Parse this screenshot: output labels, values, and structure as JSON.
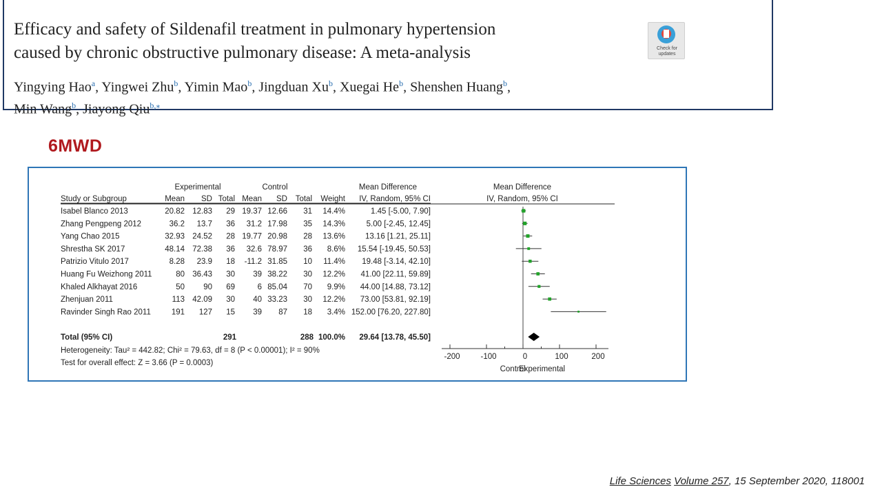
{
  "paper": {
    "title_line1": "Efficacy and safety of Sildenafil treatment in pulmonary hypertension",
    "title_line2": "caused by chronic obstructive pulmonary disease: A meta-analysis",
    "authors": [
      {
        "name": "Yingying Hao",
        "sup": "a"
      },
      {
        "name": "Yingwei Zhu",
        "sup": "b"
      },
      {
        "name": "Yimin Mao",
        "sup": "b"
      },
      {
        "name": "Jingduan Xu",
        "sup": "b"
      },
      {
        "name": "Xuegai He",
        "sup": "b"
      },
      {
        "name": "Shenshen Huang",
        "sup": "b"
      },
      {
        "name": "Min Wang",
        "sup": "b"
      },
      {
        "name": "Jiayong Qiu",
        "sup": "b,⁎"
      }
    ],
    "badge_text_1": "Check for",
    "badge_text_2": "updates"
  },
  "section_label": "6MWD",
  "citation": {
    "journal": "Life Sciences",
    "volume": "Volume 257",
    "rest": ", 15 September 2020, 118001"
  },
  "chart_data": {
    "type": "forest",
    "group_headers": {
      "experimental": "Experimental",
      "control": "Control",
      "md": "Mean Difference",
      "md_plot": "Mean Difference"
    },
    "columns": [
      "Study or Subgroup",
      "Mean",
      "SD",
      "Total",
      "Mean",
      "SD",
      "Total",
      "Weight",
      "IV, Random, 95% CI",
      "IV, Random, 95% CI"
    ],
    "studies": [
      {
        "name": "Isabel Blanco 2013",
        "e_mean": "20.82",
        "e_sd": "12.83",
        "e_n": "29",
        "c_mean": "19.37",
        "c_sd": "12.66",
        "c_n": "31",
        "weight": "14.4%",
        "ci_text": "1.45 [-5.00, 7.90]",
        "md": 1.45,
        "lo": -5.0,
        "hi": 7.9
      },
      {
        "name": "Zhang Pengpeng 2012",
        "e_mean": "36.2",
        "e_sd": "13.7",
        "e_n": "36",
        "c_mean": "31.2",
        "c_sd": "17.98",
        "c_n": "35",
        "weight": "14.3%",
        "ci_text": "5.00 [-2.45, 12.45]",
        "md": 5.0,
        "lo": -2.45,
        "hi": 12.45
      },
      {
        "name": "Yang Chao 2015",
        "e_mean": "32.93",
        "e_sd": "24.52",
        "e_n": "28",
        "c_mean": "19.77",
        "c_sd": "20.98",
        "c_n": "28",
        "weight": "13.6%",
        "ci_text": "13.16 [1.21, 25.11]",
        "md": 13.16,
        "lo": 1.21,
        "hi": 25.11
      },
      {
        "name": "Shrestha SK 2017",
        "e_mean": "48.14",
        "e_sd": "72.38",
        "e_n": "36",
        "c_mean": "32.6",
        "c_sd": "78.97",
        "c_n": "36",
        "weight": "8.6%",
        "ci_text": "15.54 [-19.45, 50.53]",
        "md": 15.54,
        "lo": -19.45,
        "hi": 50.53
      },
      {
        "name": "Patrizio Vitulo 2017",
        "e_mean": "8.28",
        "e_sd": "23.9",
        "e_n": "18",
        "c_mean": "-11.2",
        "c_sd": "31.85",
        "c_n": "10",
        "weight": "11.4%",
        "ci_text": "19.48 [-3.14, 42.10]",
        "md": 19.48,
        "lo": -3.14,
        "hi": 42.1
      },
      {
        "name": "Huang Fu Weizhong 2011",
        "e_mean": "80",
        "e_sd": "36.43",
        "e_n": "30",
        "c_mean": "39",
        "c_sd": "38.22",
        "c_n": "30",
        "weight": "12.2%",
        "ci_text": "41.00 [22.11, 59.89]",
        "md": 41.0,
        "lo": 22.11,
        "hi": 59.89
      },
      {
        "name": "Khaled Alkhayat 2016",
        "e_mean": "50",
        "e_sd": "90",
        "e_n": "69",
        "c_mean": "6",
        "c_sd": "85.04",
        "c_n": "70",
        "weight": "9.9%",
        "ci_text": "44.00 [14.88, 73.12]",
        "md": 44.0,
        "lo": 14.88,
        "hi": 73.12
      },
      {
        "name": "Zhenjuan 2011",
        "e_mean": "113",
        "e_sd": "42.09",
        "e_n": "30",
        "c_mean": "40",
        "c_sd": "33.23",
        "c_n": "30",
        "weight": "12.2%",
        "ci_text": "73.00 [53.81, 92.19]",
        "md": 73.0,
        "lo": 53.81,
        "hi": 92.19
      },
      {
        "name": "Ravinder Singh Rao 2011",
        "e_mean": "191",
        "e_sd": "127",
        "e_n": "15",
        "c_mean": "39",
        "c_sd": "87",
        "c_n": "18",
        "weight": "3.4%",
        "ci_text": "152.00 [76.20, 227.80]",
        "md": 152.0,
        "lo": 76.2,
        "hi": 227.8
      }
    ],
    "total": {
      "name": "Total (95% CI)",
      "e_n": "291",
      "c_n": "288",
      "weight": "100.0%",
      "ci_text": "29.64 [13.78, 45.50]",
      "md": 29.64,
      "lo": 13.78,
      "hi": 45.5
    },
    "heterogeneity": "Heterogeneity: Tau² = 442.82; Chi² = 79.63, df = 8 (P < 0.00001); I² = 90%",
    "overall_effect": "Test for overall effect: Z = 3.66 (P = 0.0003)",
    "xlim": [
      -200,
      200
    ],
    "xticks": [
      -200,
      -100,
      0,
      100,
      200
    ],
    "favours_left": "Control",
    "favours_right": "Experimental",
    "marker_color": "#22a32a"
  }
}
